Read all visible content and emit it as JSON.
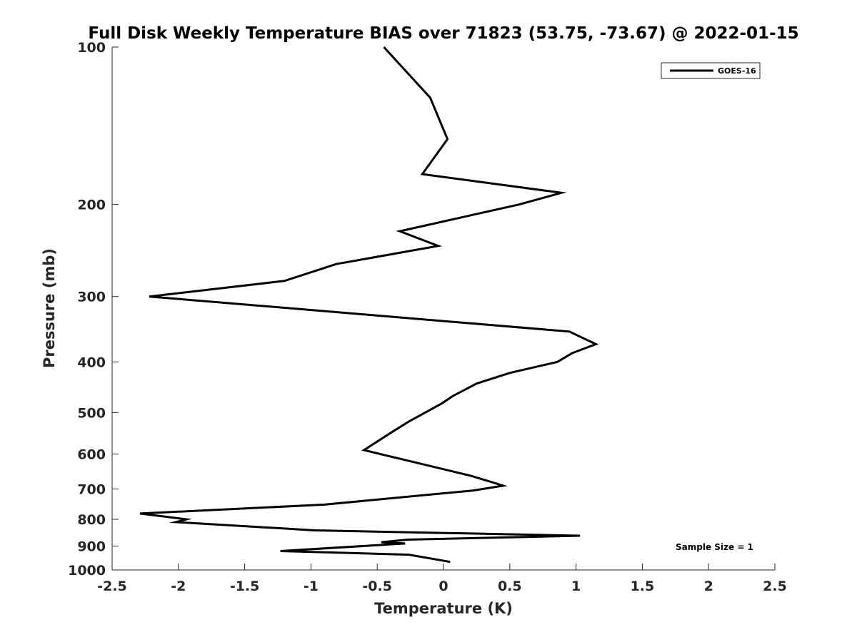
{
  "chart_data": {
    "type": "line",
    "title": "Full Disk Weekly Temperature BIAS over 71823 (53.75, -73.67) @ 2022-01-15",
    "xlabel": "Temperature (K)",
    "ylabel": "Pressure (mb)",
    "xlim": [
      -2.5,
      2.5
    ],
    "ylim": [
      100,
      1000
    ],
    "y_scale": "log",
    "y_reversed": true,
    "xticks": [
      -2.5,
      -2,
      -1.5,
      -1,
      -0.5,
      0,
      0.5,
      1,
      1.5,
      2,
      2.5
    ],
    "xtick_labels": [
      "-2.5",
      "-2",
      "-1.5",
      "-1",
      "-0.5",
      "0",
      "0.5",
      "1",
      "1.5",
      "2",
      "2.5"
    ],
    "yticks": [
      100,
      200,
      300,
      400,
      500,
      600,
      700,
      800,
      900,
      1000
    ],
    "ytick_labels": [
      "100",
      "200",
      "300",
      "400",
      "500",
      "600",
      "700",
      "800",
      "900",
      "1000"
    ],
    "grid": false,
    "legend_position": "top-right",
    "annotation": "Sample Size = 1",
    "series": [
      {
        "name": "GOES-16",
        "color": "#000000",
        "x": [
          -0.45,
          -0.1,
          0.03,
          -0.16,
          0.89,
          0.57,
          -0.33,
          -0.04,
          -0.81,
          -1.2,
          -2.22,
          0.95,
          1.15,
          0.97,
          0.86,
          0.5,
          0.25,
          0.07,
          -0.01,
          -0.26,
          -0.39,
          -0.6,
          0.2,
          0.37,
          0.45,
          0.22,
          -0.9,
          -2.29,
          -1.94,
          -2.02,
          -0.97,
          1.03,
          -0.27,
          -0.47,
          -0.29,
          -1.23,
          -0.26,
          0.05
        ],
        "y": [
          100,
          125,
          150,
          175,
          190,
          200,
          225,
          240,
          260,
          280,
          300,
          350,
          370,
          385,
          400,
          420,
          440,
          465,
          480,
          520,
          545,
          590,
          660,
          680,
          690,
          705,
          750,
          780,
          800,
          810,
          840,
          860,
          875,
          885,
          890,
          920,
          935,
          965
        ]
      }
    ]
  }
}
